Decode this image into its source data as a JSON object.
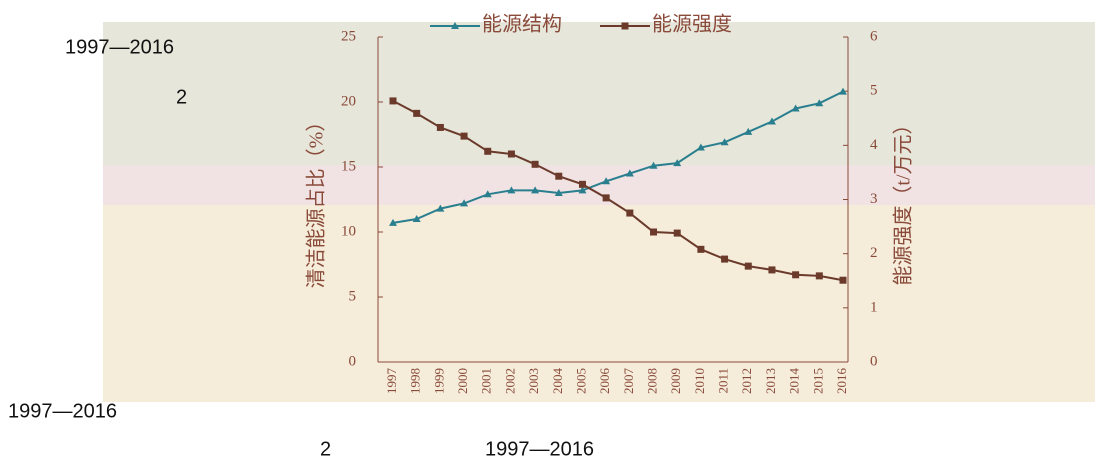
{
  "page_texts": [
    "1997—2016",
    "2",
    "1997—2016",
    "2",
    "1997—2016"
  ],
  "chart_data": {
    "type": "line",
    "categories": [
      "1997",
      "1998",
      "1999",
      "2000",
      "2001",
      "2002",
      "2003",
      "2004",
      "2005",
      "2006",
      "2007",
      "2008",
      "2009",
      "2010",
      "2011",
      "2012",
      "2013",
      "2014",
      "2015",
      "2016"
    ],
    "series": [
      {
        "name": "能源结构",
        "color": "#2a7f8f",
        "marker": "triangle",
        "values": [
          10.7,
          11.0,
          11.8,
          12.2,
          12.9,
          13.2,
          13.2,
          13.0,
          13.2,
          13.9,
          14.5,
          15.1,
          15.3,
          16.5,
          16.9,
          17.7,
          18.5,
          19.5,
          19.9,
          20.8
        ]
      },
      {
        "name": "能源强度",
        "color": "#6b3a2a",
        "marker": "square",
        "axis": "y2",
        "values": [
          4.82,
          4.59,
          4.33,
          4.17,
          3.89,
          3.84,
          3.65,
          3.43,
          3.28,
          3.03,
          2.75,
          2.4,
          2.38,
          2.08,
          1.9,
          1.77,
          1.7,
          1.61,
          1.59,
          1.51
        ]
      }
    ],
    "ylabel": "清洁能源占比（%）",
    "y2label": "能源强度（t/万元）",
    "ylim": [
      0,
      25
    ],
    "yticks": [
      0,
      5,
      10,
      15,
      20,
      25
    ],
    "y2lim": [
      0,
      6
    ],
    "y2ticks": [
      0,
      1,
      2,
      3,
      4,
      5,
      6
    ],
    "legend": "top"
  }
}
